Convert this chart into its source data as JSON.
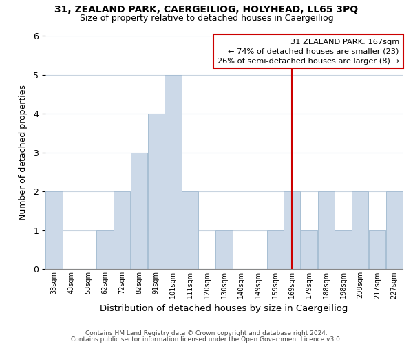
{
  "title1": "31, ZEALAND PARK, CAERGEILIOG, HOLYHEAD, LL65 3PQ",
  "title2": "Size of property relative to detached houses in Caergeiliog",
  "xlabel": "Distribution of detached houses by size in Caergeiliog",
  "ylabel": "Number of detached properties",
  "footer1": "Contains HM Land Registry data © Crown copyright and database right 2024.",
  "footer2": "Contains public sector information licensed under the Open Government Licence v3.0.",
  "bin_labels": [
    "33sqm",
    "43sqm",
    "53sqm",
    "62sqm",
    "72sqm",
    "82sqm",
    "91sqm",
    "101sqm",
    "111sqm",
    "120sqm",
    "130sqm",
    "140sqm",
    "149sqm",
    "159sqm",
    "169sqm",
    "179sqm",
    "188sqm",
    "198sqm",
    "208sqm",
    "217sqm",
    "227sqm"
  ],
  "counts": [
    2,
    0,
    0,
    1,
    2,
    3,
    4,
    5,
    2,
    0,
    1,
    0,
    0,
    1,
    2,
    1,
    2,
    1,
    2,
    1,
    2
  ],
  "bar_color": "#ccd9e8",
  "bar_edge_color": "#a8bfd4",
  "marker_label": "31 ZEALAND PARK: 167sqm",
  "marker_line_color": "#cc0000",
  "annotation_line1": "← 74% of detached houses are smaller (23)",
  "annotation_line2": "26% of semi-detached houses are larger (8) →",
  "annotation_box_edge": "#cc0000",
  "ylim": [
    0,
    6
  ],
  "yticks": [
    0,
    1,
    2,
    3,
    4,
    5,
    6
  ],
  "background_color": "#ffffff",
  "grid_color": "#c8d4e0"
}
